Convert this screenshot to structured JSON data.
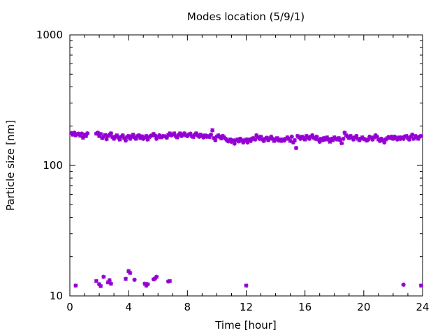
{
  "chart_data": {
    "type": "scatter",
    "title": "Modes location (5/9/1)",
    "xlabel": "Time [hour]",
    "ylabel": "Particle size [nm]",
    "xlim": [
      0,
      24
    ],
    "ylim": [
      10,
      1000
    ],
    "yscale": "log",
    "grid": false,
    "legend": "none",
    "marker_color": "#9400d3",
    "marker": "asterisk",
    "x_ticks": [
      "0",
      "4",
      "8",
      "12",
      "16",
      "20",
      "24"
    ],
    "y_ticks": [
      "10",
      "100",
      "1000"
    ],
    "series": [
      {
        "points": [
          [
            0.1,
            177
          ],
          [
            0.2,
            172
          ],
          [
            0.3,
            178
          ],
          [
            0.4,
            170
          ],
          [
            0.5,
            174
          ],
          [
            0.6,
            175
          ],
          [
            0.7,
            169
          ],
          [
            0.8,
            175
          ],
          [
            0.9,
            163
          ],
          [
            1.0,
            172
          ],
          [
            1.1,
            168
          ],
          [
            1.2,
            176
          ],
          [
            1.8,
            175
          ],
          [
            1.9,
            178
          ],
          [
            2.0,
            168
          ],
          [
            2.1,
            174
          ],
          [
            2.2,
            162
          ],
          [
            2.3,
            166
          ],
          [
            2.4,
            171
          ],
          [
            2.5,
            159
          ],
          [
            2.6,
            168
          ],
          [
            2.7,
            172
          ],
          [
            2.8,
            176
          ],
          [
            2.9,
            165
          ],
          [
            3.0,
            160
          ],
          [
            3.1,
            166
          ],
          [
            3.2,
            170
          ],
          [
            3.3,
            163
          ],
          [
            3.4,
            158
          ],
          [
            3.5,
            166
          ],
          [
            3.6,
            170
          ],
          [
            3.7,
            162
          ],
          [
            3.8,
            155
          ],
          [
            3.9,
            165
          ],
          [
            4.0,
            168
          ],
          [
            4.1,
            160
          ],
          [
            4.2,
            166
          ],
          [
            4.3,
            172
          ],
          [
            4.4,
            164
          ],
          [
            4.5,
            160
          ],
          [
            4.6,
            168
          ],
          [
            4.7,
            170
          ],
          [
            4.8,
            162
          ],
          [
            4.9,
            167
          ],
          [
            5.0,
            160
          ],
          [
            5.1,
            164
          ],
          [
            5.2,
            168
          ],
          [
            5.3,
            158
          ],
          [
            5.4,
            165
          ],
          [
            5.5,
            168
          ],
          [
            5.6,
            170
          ],
          [
            5.7,
            174
          ],
          [
            5.8,
            169
          ],
          [
            5.9,
            160
          ],
          [
            6.0,
            166
          ],
          [
            6.1,
            170
          ],
          [
            6.2,
            164
          ],
          [
            6.3,
            167
          ],
          [
            6.4,
            168
          ],
          [
            6.5,
            166
          ],
          [
            6.6,
            163
          ],
          [
            6.7,
            171
          ],
          [
            6.8,
            176
          ],
          [
            6.9,
            170
          ],
          [
            7.0,
            172
          ],
          [
            7.1,
            176
          ],
          [
            7.2,
            168
          ],
          [
            7.3,
            164
          ],
          [
            7.4,
            171
          ],
          [
            7.5,
            176
          ],
          [
            7.6,
            168
          ],
          [
            7.7,
            172
          ],
          [
            7.8,
            176
          ],
          [
            7.9,
            170
          ],
          [
            8.0,
            168
          ],
          [
            8.1,
            172
          ],
          [
            8.2,
            175
          ],
          [
            8.3,
            168
          ],
          [
            8.4,
            165
          ],
          [
            8.5,
            172
          ],
          [
            8.6,
            176
          ],
          [
            8.7,
            170
          ],
          [
            8.8,
            166
          ],
          [
            8.9,
            172
          ],
          [
            9.0,
            168
          ],
          [
            9.1,
            164
          ],
          [
            9.2,
            170
          ],
          [
            9.3,
            166
          ],
          [
            9.4,
            168
          ],
          [
            9.5,
            165
          ],
          [
            9.6,
            172
          ],
          [
            9.7,
            186
          ],
          [
            9.8,
            162
          ],
          [
            9.9,
            156
          ],
          [
            10.0,
            166
          ],
          [
            10.1,
            170
          ],
          [
            10.2,
            166
          ],
          [
            10.3,
            161
          ],
          [
            10.4,
            168
          ],
          [
            10.5,
            164
          ],
          [
            10.6,
            160
          ],
          [
            10.7,
            155
          ],
          [
            10.8,
            153
          ],
          [
            10.9,
            158
          ],
          [
            11.0,
            152
          ],
          [
            11.1,
            156
          ],
          [
            11.2,
            147
          ],
          [
            11.3,
            155
          ],
          [
            11.4,
            158
          ],
          [
            11.5,
            153
          ],
          [
            11.6,
            160
          ],
          [
            11.7,
            156
          ],
          [
            11.8,
            150
          ],
          [
            11.9,
            155
          ],
          [
            12.0,
            158
          ],
          [
            12.1,
            150
          ],
          [
            12.2,
            158
          ],
          [
            12.3,
            154
          ],
          [
            12.4,
            160
          ],
          [
            12.5,
            162
          ],
          [
            12.6,
            158
          ],
          [
            12.7,
            170
          ],
          [
            12.8,
            164
          ],
          [
            12.9,
            160
          ],
          [
            13.0,
            166
          ],
          [
            13.1,
            158
          ],
          [
            13.2,
            154
          ],
          [
            13.3,
            160
          ],
          [
            13.4,
            163
          ],
          [
            13.5,
            156
          ],
          [
            13.6,
            160
          ],
          [
            13.7,
            166
          ],
          [
            13.8,
            160
          ],
          [
            13.9,
            154
          ],
          [
            14.0,
            158
          ],
          [
            14.1,
            162
          ],
          [
            14.2,
            155
          ],
          [
            14.3,
            158
          ],
          [
            14.4,
            154
          ],
          [
            14.5,
            158
          ],
          [
            14.6,
            155
          ],
          [
            14.7,
            160
          ],
          [
            14.8,
            164
          ],
          [
            14.9,
            160
          ],
          [
            15.0,
            154
          ],
          [
            15.1,
            166
          ],
          [
            15.2,
            150
          ],
          [
            15.3,
            156
          ],
          [
            15.4,
            136
          ],
          [
            15.5,
            168
          ],
          [
            15.6,
            164
          ],
          [
            15.7,
            160
          ],
          [
            15.8,
            166
          ],
          [
            15.9,
            162
          ],
          [
            16.0,
            158
          ],
          [
            16.1,
            168
          ],
          [
            16.2,
            164
          ],
          [
            16.3,
            160
          ],
          [
            16.4,
            166
          ],
          [
            16.5,
            170
          ],
          [
            16.6,
            163
          ],
          [
            16.7,
            160
          ],
          [
            16.8,
            166
          ],
          [
            16.9,
            158
          ],
          [
            17.0,
            152
          ],
          [
            17.1,
            160
          ],
          [
            17.2,
            156
          ],
          [
            17.3,
            162
          ],
          [
            17.4,
            158
          ],
          [
            17.5,
            164
          ],
          [
            17.6,
            158
          ],
          [
            17.7,
            152
          ],
          [
            17.8,
            160
          ],
          [
            17.9,
            156
          ],
          [
            18.0,
            164
          ],
          [
            18.1,
            160
          ],
          [
            18.2,
            158
          ],
          [
            18.3,
            162
          ],
          [
            18.4,
            156
          ],
          [
            18.5,
            148
          ],
          [
            18.6,
            160
          ],
          [
            18.7,
            178
          ],
          [
            18.8,
            170
          ],
          [
            18.9,
            166
          ],
          [
            19.0,
            162
          ],
          [
            19.1,
            168
          ],
          [
            19.2,
            163
          ],
          [
            19.3,
            158
          ],
          [
            19.4,
            164
          ],
          [
            19.5,
            168
          ],
          [
            19.6,
            160
          ],
          [
            19.7,
            156
          ],
          [
            19.8,
            160
          ],
          [
            19.9,
            164
          ],
          [
            20.0,
            160
          ],
          [
            20.1,
            158
          ],
          [
            20.2,
            155
          ],
          [
            20.3,
            158
          ],
          [
            20.4,
            166
          ],
          [
            20.5,
            162
          ],
          [
            20.6,
            158
          ],
          [
            20.7,
            164
          ],
          [
            20.8,
            170
          ],
          [
            20.9,
            166
          ],
          [
            21.0,
            158
          ],
          [
            21.1,
            154
          ],
          [
            21.2,
            160
          ],
          [
            21.3,
            156
          ],
          [
            21.4,
            150
          ],
          [
            21.5,
            158
          ],
          [
            21.6,
            162
          ],
          [
            21.7,
            165
          ],
          [
            21.8,
            162
          ],
          [
            21.9,
            166
          ],
          [
            22.0,
            160
          ],
          [
            22.1,
            166
          ],
          [
            22.2,
            162
          ],
          [
            22.3,
            158
          ],
          [
            22.4,
            164
          ],
          [
            22.5,
            160
          ],
          [
            22.6,
            164
          ],
          [
            22.7,
            160
          ],
          [
            22.8,
            166
          ],
          [
            22.9,
            168
          ],
          [
            23.0,
            162
          ],
          [
            23.1,
            158
          ],
          [
            23.2,
            166
          ],
          [
            23.3,
            172
          ],
          [
            23.4,
            160
          ],
          [
            23.5,
            168
          ],
          [
            23.6,
            165
          ],
          [
            23.7,
            160
          ],
          [
            23.8,
            166
          ],
          [
            23.9,
            168
          ]
        ]
      },
      {
        "points": [
          [
            0.4,
            12
          ],
          [
            1.8,
            13
          ],
          [
            2.0,
            12.3
          ],
          [
            2.1,
            11.9
          ],
          [
            2.3,
            14
          ],
          [
            2.6,
            12.7
          ],
          [
            2.7,
            13.2
          ],
          [
            2.8,
            12.4
          ],
          [
            3.8,
            13.5
          ],
          [
            4.0,
            15.5
          ],
          [
            4.1,
            15
          ],
          [
            4.4,
            13.3
          ],
          [
            5.1,
            12.4
          ],
          [
            5.2,
            12
          ],
          [
            5.3,
            12.3
          ],
          [
            5.7,
            13.4
          ],
          [
            5.8,
            13.6
          ],
          [
            5.9,
            14
          ],
          [
            6.7,
            12.9
          ],
          [
            6.8,
            13
          ],
          [
            12.0,
            12
          ],
          [
            22.7,
            12.2
          ],
          [
            23.9,
            12
          ]
        ]
      }
    ]
  }
}
